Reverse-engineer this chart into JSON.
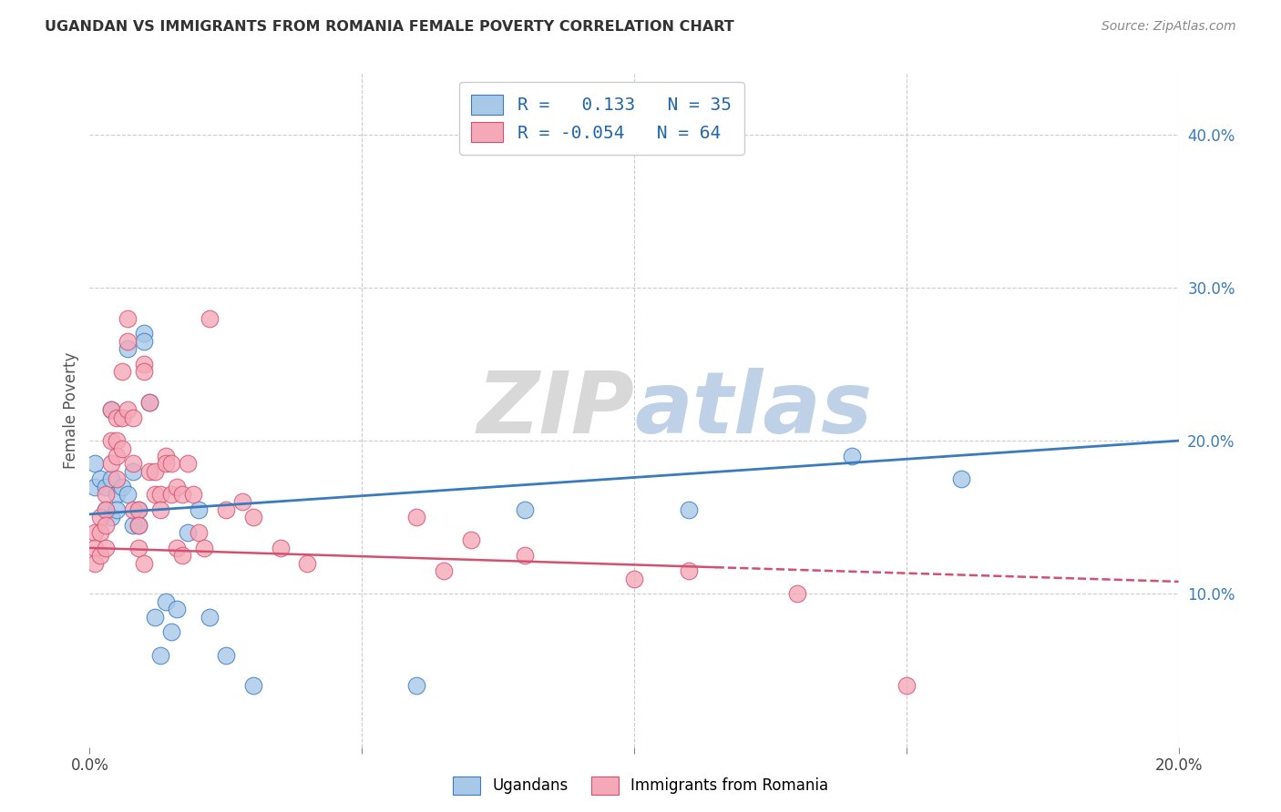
{
  "title": "UGANDAN VS IMMIGRANTS FROM ROMANIA FEMALE POVERTY CORRELATION CHART",
  "source": "Source: ZipAtlas.com",
  "ylabel": "Female Poverty",
  "r_ugandan": 0.133,
  "n_ugandan": 35,
  "r_romania": -0.054,
  "n_romania": 64,
  "color_ugandan": "#a8c8e8",
  "color_romania": "#f4a8b8",
  "line_color_ugandan": "#3a7abf",
  "line_color_romania": "#d45070",
  "xlim": [
    0.0,
    0.2
  ],
  "ylim": [
    0.0,
    0.44
  ],
  "xtick_positions": [
    0.0,
    0.05,
    0.1,
    0.15,
    0.2
  ],
  "xtick_labels": [
    "0.0%",
    "",
    "",
    "",
    "20.0%"
  ],
  "ytick_right_vals": [
    0.1,
    0.2,
    0.3,
    0.4
  ],
  "ytick_right_labels": [
    "10.0%",
    "20.0%",
    "30.0%",
    "40.0%"
  ],
  "watermark_zip": "ZIP",
  "watermark_atlas": "atlas",
  "ug_line_x0": 0.0,
  "ug_line_y0": 0.152,
  "ug_line_x1": 0.2,
  "ug_line_y1": 0.2,
  "ro_line_x0": 0.0,
  "ro_line_y0": 0.13,
  "ro_line_x1": 0.2,
  "ro_line_y1": 0.108,
  "ugandan_x": [
    0.001,
    0.001,
    0.002,
    0.003,
    0.003,
    0.004,
    0.004,
    0.004,
    0.005,
    0.005,
    0.006,
    0.007,
    0.007,
    0.008,
    0.008,
    0.009,
    0.009,
    0.01,
    0.01,
    0.011,
    0.012,
    0.013,
    0.014,
    0.015,
    0.016,
    0.018,
    0.02,
    0.022,
    0.025,
    0.03,
    0.06,
    0.08,
    0.11,
    0.14,
    0.16
  ],
  "ugandan_y": [
    0.185,
    0.17,
    0.175,
    0.17,
    0.155,
    0.22,
    0.175,
    0.15,
    0.165,
    0.155,
    0.17,
    0.165,
    0.26,
    0.18,
    0.145,
    0.155,
    0.145,
    0.27,
    0.265,
    0.225,
    0.085,
    0.06,
    0.095,
    0.075,
    0.09,
    0.14,
    0.155,
    0.085,
    0.06,
    0.04,
    0.04,
    0.155,
    0.155,
    0.19,
    0.175
  ],
  "romania_x": [
    0.001,
    0.001,
    0.001,
    0.002,
    0.002,
    0.002,
    0.003,
    0.003,
    0.003,
    0.003,
    0.004,
    0.004,
    0.004,
    0.005,
    0.005,
    0.005,
    0.005,
    0.006,
    0.006,
    0.006,
    0.007,
    0.007,
    0.007,
    0.008,
    0.008,
    0.008,
    0.009,
    0.009,
    0.009,
    0.01,
    0.01,
    0.01,
    0.011,
    0.011,
    0.012,
    0.012,
    0.013,
    0.013,
    0.014,
    0.014,
    0.015,
    0.015,
    0.016,
    0.016,
    0.017,
    0.017,
    0.018,
    0.019,
    0.02,
    0.021,
    0.022,
    0.025,
    0.028,
    0.03,
    0.035,
    0.04,
    0.06,
    0.065,
    0.07,
    0.08,
    0.1,
    0.11,
    0.13,
    0.15
  ],
  "romania_y": [
    0.14,
    0.13,
    0.12,
    0.15,
    0.14,
    0.125,
    0.165,
    0.155,
    0.145,
    0.13,
    0.22,
    0.2,
    0.185,
    0.215,
    0.2,
    0.19,
    0.175,
    0.245,
    0.215,
    0.195,
    0.28,
    0.265,
    0.22,
    0.215,
    0.185,
    0.155,
    0.155,
    0.145,
    0.13,
    0.25,
    0.245,
    0.12,
    0.225,
    0.18,
    0.18,
    0.165,
    0.165,
    0.155,
    0.19,
    0.185,
    0.185,
    0.165,
    0.17,
    0.13,
    0.165,
    0.125,
    0.185,
    0.165,
    0.14,
    0.13,
    0.28,
    0.155,
    0.16,
    0.15,
    0.13,
    0.12,
    0.15,
    0.115,
    0.135,
    0.125,
    0.11,
    0.115,
    0.1,
    0.04
  ]
}
